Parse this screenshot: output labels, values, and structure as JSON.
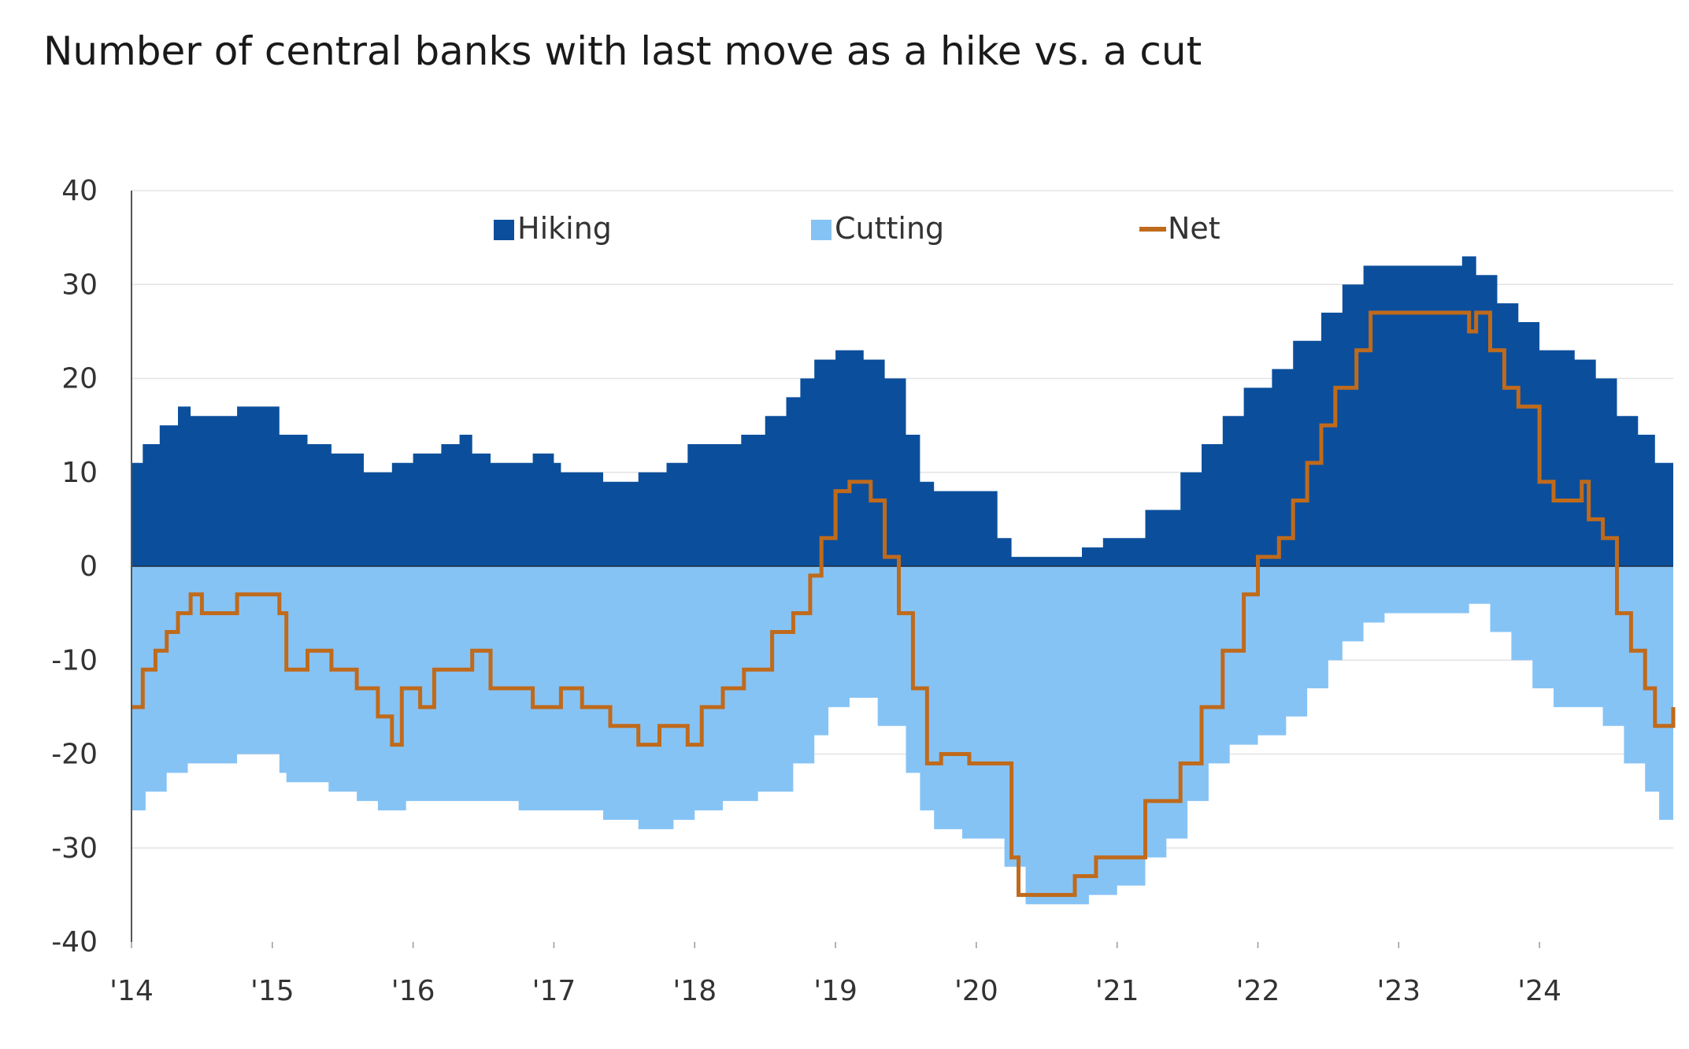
{
  "chart_data": {
    "type": "area",
    "title": "Number of central banks with last move as a hike vs. a cut",
    "xlabel": "",
    "ylabel": "",
    "xlim": [
      2014.0,
      2024.95
    ],
    "ylim": [
      -40,
      40
    ],
    "yticks": [
      40,
      30,
      20,
      10,
      0,
      -10,
      -20,
      -30,
      -40
    ],
    "xticks": [
      {
        "label": "'14",
        "value": 2014
      },
      {
        "label": "'15",
        "value": 2015
      },
      {
        "label": "'16",
        "value": 2016
      },
      {
        "label": "'17",
        "value": 2017
      },
      {
        "label": "'18",
        "value": 2018
      },
      {
        "label": "'19",
        "value": 2019
      },
      {
        "label": "'20",
        "value": 2020
      },
      {
        "label": "'21",
        "value": 2021
      },
      {
        "label": "'22",
        "value": 2022
      },
      {
        "label": "'23",
        "value": 2023
      },
      {
        "label": "'24",
        "value": 2024
      }
    ],
    "grid": true,
    "legend_position": "top",
    "series": [
      {
        "name": "Hiking",
        "type": "area",
        "color": "#0b4f9c",
        "points": [
          [
            2014.0,
            11
          ],
          [
            2014.08,
            13
          ],
          [
            2014.2,
            15
          ],
          [
            2014.33,
            17
          ],
          [
            2014.42,
            16
          ],
          [
            2014.75,
            17
          ],
          [
            2015.05,
            14
          ],
          [
            2015.25,
            13
          ],
          [
            2015.42,
            12
          ],
          [
            2015.65,
            10
          ],
          [
            2015.85,
            11
          ],
          [
            2016.0,
            12
          ],
          [
            2016.2,
            13
          ],
          [
            2016.33,
            14
          ],
          [
            2016.42,
            12
          ],
          [
            2016.55,
            11
          ],
          [
            2016.85,
            12
          ],
          [
            2017.0,
            11
          ],
          [
            2017.05,
            10
          ],
          [
            2017.35,
            9
          ],
          [
            2017.6,
            10
          ],
          [
            2017.8,
            11
          ],
          [
            2017.95,
            13
          ],
          [
            2018.1,
            13
          ],
          [
            2018.33,
            14
          ],
          [
            2018.5,
            16
          ],
          [
            2018.65,
            18
          ],
          [
            2018.75,
            20
          ],
          [
            2018.85,
            22
          ],
          [
            2019.0,
            23
          ],
          [
            2019.2,
            22
          ],
          [
            2019.35,
            20
          ],
          [
            2019.5,
            14
          ],
          [
            2019.6,
            9
          ],
          [
            2019.7,
            8
          ],
          [
            2020.0,
            8
          ],
          [
            2020.15,
            3
          ],
          [
            2020.25,
            1
          ],
          [
            2020.55,
            1
          ],
          [
            2020.75,
            2
          ],
          [
            2020.9,
            3
          ],
          [
            2021.05,
            3
          ],
          [
            2021.2,
            6
          ],
          [
            2021.45,
            10
          ],
          [
            2021.6,
            13
          ],
          [
            2021.75,
            16
          ],
          [
            2021.9,
            19
          ],
          [
            2022.1,
            21
          ],
          [
            2022.25,
            24
          ],
          [
            2022.45,
            27
          ],
          [
            2022.6,
            30
          ],
          [
            2022.75,
            32
          ],
          [
            2023.0,
            32
          ],
          [
            2023.3,
            32
          ],
          [
            2023.45,
            33
          ],
          [
            2023.55,
            31
          ],
          [
            2023.7,
            28
          ],
          [
            2023.85,
            26
          ],
          [
            2024.0,
            23
          ],
          [
            2024.25,
            22
          ],
          [
            2024.4,
            20
          ],
          [
            2024.55,
            16
          ],
          [
            2024.7,
            14
          ],
          [
            2024.82,
            11
          ],
          [
            2024.95,
            11
          ]
        ]
      },
      {
        "name": "Cutting",
        "type": "area",
        "color": "#86c3f5",
        "points": [
          [
            2014.0,
            -26
          ],
          [
            2014.1,
            -24
          ],
          [
            2014.25,
            -22
          ],
          [
            2014.4,
            -21
          ],
          [
            2014.75,
            -20
          ],
          [
            2015.05,
            -22
          ],
          [
            2015.1,
            -23
          ],
          [
            2015.4,
            -24
          ],
          [
            2015.6,
            -25
          ],
          [
            2015.75,
            -26
          ],
          [
            2015.95,
            -25
          ],
          [
            2016.2,
            -25
          ],
          [
            2016.5,
            -25
          ],
          [
            2016.75,
            -26
          ],
          [
            2017.0,
            -26
          ],
          [
            2017.35,
            -27
          ],
          [
            2017.6,
            -28
          ],
          [
            2017.85,
            -27
          ],
          [
            2018.0,
            -26
          ],
          [
            2018.2,
            -25
          ],
          [
            2018.45,
            -24
          ],
          [
            2018.7,
            -21
          ],
          [
            2018.85,
            -18
          ],
          [
            2018.95,
            -15
          ],
          [
            2019.1,
            -14
          ],
          [
            2019.3,
            -17
          ],
          [
            2019.5,
            -22
          ],
          [
            2019.6,
            -26
          ],
          [
            2019.7,
            -28
          ],
          [
            2019.9,
            -29
          ],
          [
            2020.1,
            -29
          ],
          [
            2020.2,
            -32
          ],
          [
            2020.35,
            -36
          ],
          [
            2020.65,
            -36
          ],
          [
            2020.8,
            -35
          ],
          [
            2021.0,
            -34
          ],
          [
            2021.2,
            -31
          ],
          [
            2021.35,
            -29
          ],
          [
            2021.5,
            -25
          ],
          [
            2021.65,
            -21
          ],
          [
            2021.8,
            -19
          ],
          [
            2022.0,
            -18
          ],
          [
            2022.2,
            -16
          ],
          [
            2022.35,
            -13
          ],
          [
            2022.5,
            -10
          ],
          [
            2022.6,
            -8
          ],
          [
            2022.75,
            -6
          ],
          [
            2022.9,
            -5
          ],
          [
            2023.3,
            -5
          ],
          [
            2023.5,
            -4
          ],
          [
            2023.65,
            -7
          ],
          [
            2023.8,
            -10
          ],
          [
            2023.95,
            -13
          ],
          [
            2024.1,
            -15
          ],
          [
            2024.3,
            -15
          ],
          [
            2024.45,
            -17
          ],
          [
            2024.6,
            -21
          ],
          [
            2024.75,
            -24
          ],
          [
            2024.85,
            -27
          ],
          [
            2024.95,
            -26
          ]
        ]
      },
      {
        "name": "Net",
        "type": "line",
        "color": "#c06a1b",
        "points": [
          [
            2014.0,
            -15
          ],
          [
            2014.08,
            -11
          ],
          [
            2014.17,
            -9
          ],
          [
            2014.25,
            -7
          ],
          [
            2014.33,
            -5
          ],
          [
            2014.42,
            -3
          ],
          [
            2014.5,
            -5
          ],
          [
            2014.75,
            -3
          ],
          [
            2015.05,
            -5
          ],
          [
            2015.1,
            -11
          ],
          [
            2015.25,
            -9
          ],
          [
            2015.42,
            -11
          ],
          [
            2015.6,
            -13
          ],
          [
            2015.75,
            -16
          ],
          [
            2015.85,
            -19
          ],
          [
            2015.92,
            -13
          ],
          [
            2016.05,
            -15
          ],
          [
            2016.15,
            -11
          ],
          [
            2016.35,
            -11
          ],
          [
            2016.42,
            -9
          ],
          [
            2016.55,
            -13
          ],
          [
            2016.85,
            -15
          ],
          [
            2017.05,
            -13
          ],
          [
            2017.2,
            -15
          ],
          [
            2017.4,
            -17
          ],
          [
            2017.6,
            -19
          ],
          [
            2017.75,
            -17
          ],
          [
            2017.95,
            -19
          ],
          [
            2018.05,
            -15
          ],
          [
            2018.2,
            -13
          ],
          [
            2018.35,
            -11
          ],
          [
            2018.55,
            -7
          ],
          [
            2018.7,
            -5
          ],
          [
            2018.82,
            -1
          ],
          [
            2018.9,
            3
          ],
          [
            2019.0,
            8
          ],
          [
            2019.1,
            9
          ],
          [
            2019.25,
            7
          ],
          [
            2019.35,
            1
          ],
          [
            2019.45,
            -5
          ],
          [
            2019.55,
            -13
          ],
          [
            2019.65,
            -21
          ],
          [
            2019.75,
            -20
          ],
          [
            2019.95,
            -21
          ],
          [
            2020.15,
            -21
          ],
          [
            2020.25,
            -31
          ],
          [
            2020.3,
            -35
          ],
          [
            2020.55,
            -35
          ],
          [
            2020.7,
            -33
          ],
          [
            2020.85,
            -31
          ],
          [
            2021.1,
            -31
          ],
          [
            2021.2,
            -25
          ],
          [
            2021.45,
            -21
          ],
          [
            2021.6,
            -15
          ],
          [
            2021.75,
            -9
          ],
          [
            2021.9,
            -3
          ],
          [
            2022.0,
            1
          ],
          [
            2022.15,
            3
          ],
          [
            2022.25,
            7
          ],
          [
            2022.35,
            11
          ],
          [
            2022.45,
            15
          ],
          [
            2022.55,
            19
          ],
          [
            2022.7,
            23
          ],
          [
            2022.8,
            27
          ],
          [
            2023.0,
            27
          ],
          [
            2023.4,
            27
          ],
          [
            2023.5,
            25
          ],
          [
            2023.55,
            27
          ],
          [
            2023.65,
            23
          ],
          [
            2023.75,
            19
          ],
          [
            2023.85,
            17
          ],
          [
            2024.0,
            9
          ],
          [
            2024.1,
            7
          ],
          [
            2024.25,
            7
          ],
          [
            2024.3,
            9
          ],
          [
            2024.35,
            5
          ],
          [
            2024.45,
            3
          ],
          [
            2024.55,
            -5
          ],
          [
            2024.65,
            -9
          ],
          [
            2024.75,
            -13
          ],
          [
            2024.82,
            -17
          ],
          [
            2024.9,
            -17
          ],
          [
            2024.95,
            -15
          ]
        ]
      }
    ]
  }
}
